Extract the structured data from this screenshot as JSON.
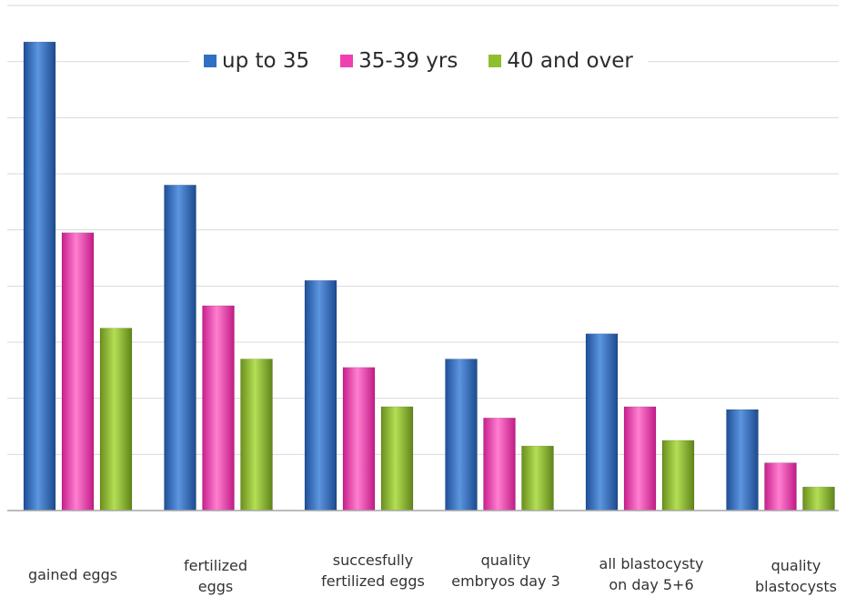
{
  "chart_data": {
    "type": "bar",
    "categories": [
      [
        "gained eggs"
      ],
      [
        "fertilized",
        "eggs"
      ],
      [
        "succesfully",
        "fertilized eggs"
      ],
      [
        "quality",
        "embryos day 3"
      ],
      [
        "all blastocysty",
        "on day 5+6"
      ],
      [
        "quality",
        "blastocysts"
      ]
    ],
    "series": [
      {
        "name": "up to 35",
        "color": "#2f6fc4",
        "values": [
          8.35,
          5.8,
          4.1,
          2.7,
          3.15,
          1.8
        ]
      },
      {
        "name": "35-39 yrs",
        "color": "#f040b0",
        "values": [
          4.95,
          3.65,
          2.55,
          1.65,
          1.85,
          0.85
        ]
      },
      {
        "name": "40 and over",
        "color": "#8fbf30",
        "values": [
          3.25,
          2.7,
          1.85,
          1.15,
          1.25,
          0.42
        ]
      }
    ],
    "ylim": [
      0,
      9
    ],
    "grid": true,
    "legend_position": "top"
  }
}
